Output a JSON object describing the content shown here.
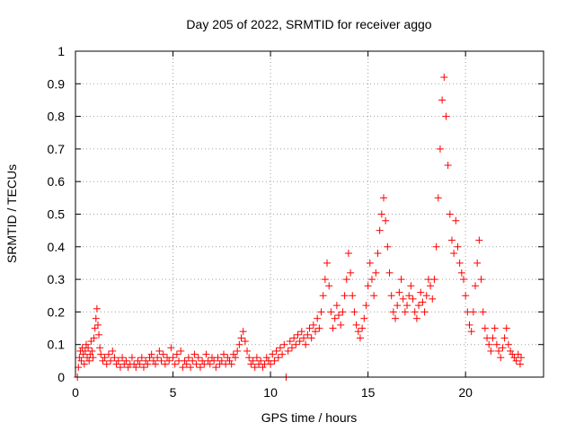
{
  "chart_data": {
    "type": "scatter",
    "title": "Day 205 of 2022, SRMTID for receiver aggo",
    "xlabel": "GPS time / hours",
    "ylabel": "SRMTID / TECUs",
    "xlim": [
      0,
      24
    ],
    "ylim": [
      0,
      1
    ],
    "x_ticks": [
      0,
      5,
      10,
      15,
      20
    ],
    "x_tick_labels": [
      "0",
      "5",
      "10",
      "15",
      "20"
    ],
    "y_ticks": [
      0,
      0.1,
      0.2,
      0.3,
      0.4,
      0.5,
      0.6,
      0.7,
      0.8,
      0.9,
      1
    ],
    "y_tick_labels": [
      "0",
      "0.1",
      "0.2",
      "0.3",
      "0.4",
      "0.5",
      "0.6",
      "0.7",
      "0.8",
      "0.9",
      "1"
    ],
    "grid": true,
    "marker": "+",
    "marker_color": "#ff0000",
    "series": [
      {
        "name": "SRMTID",
        "points": [
          [
            0.1,
            0.0
          ],
          [
            0.15,
            0.03
          ],
          [
            0.2,
            0.06
          ],
          [
            0.25,
            0.08
          ],
          [
            0.3,
            0.05
          ],
          [
            0.35,
            0.09
          ],
          [
            0.4,
            0.07
          ],
          [
            0.45,
            0.04
          ],
          [
            0.5,
            0.08
          ],
          [
            0.55,
            0.1
          ],
          [
            0.6,
            0.06
          ],
          [
            0.65,
            0.09
          ],
          [
            0.7,
            0.05
          ],
          [
            0.75,
            0.07
          ],
          [
            0.8,
            0.11
          ],
          [
            0.85,
            0.08
          ],
          [
            0.9,
            0.06
          ],
          [
            0.95,
            0.12
          ],
          [
            1.0,
            0.15
          ],
          [
            1.05,
            0.18
          ],
          [
            1.1,
            0.21
          ],
          [
            1.15,
            0.16
          ],
          [
            1.2,
            0.13
          ],
          [
            1.25,
            0.09
          ],
          [
            1.3,
            0.07
          ],
          [
            1.4,
            0.05
          ],
          [
            1.5,
            0.06
          ],
          [
            1.6,
            0.04
          ],
          [
            1.7,
            0.07
          ],
          [
            1.8,
            0.05
          ],
          [
            1.9,
            0.08
          ],
          [
            2.0,
            0.06
          ],
          [
            2.1,
            0.04
          ],
          [
            2.2,
            0.05
          ],
          [
            2.3,
            0.03
          ],
          [
            2.4,
            0.06
          ],
          [
            2.5,
            0.04
          ],
          [
            2.6,
            0.05
          ],
          [
            2.7,
            0.03
          ],
          [
            2.8,
            0.04
          ],
          [
            2.9,
            0.06
          ],
          [
            3.0,
            0.04
          ],
          [
            3.1,
            0.03
          ],
          [
            3.2,
            0.05
          ],
          [
            3.3,
            0.04
          ],
          [
            3.4,
            0.06
          ],
          [
            3.5,
            0.03
          ],
          [
            3.6,
            0.05
          ],
          [
            3.7,
            0.04
          ],
          [
            3.8,
            0.06
          ],
          [
            3.9,
            0.07
          ],
          [
            4.0,
            0.05
          ],
          [
            4.1,
            0.04
          ],
          [
            4.2,
            0.06
          ],
          [
            4.3,
            0.08
          ],
          [
            4.4,
            0.05
          ],
          [
            4.5,
            0.07
          ],
          [
            4.6,
            0.04
          ],
          [
            4.7,
            0.06
          ],
          [
            4.8,
            0.05
          ],
          [
            4.9,
            0.09
          ],
          [
            5.0,
            0.06
          ],
          [
            5.1,
            0.04
          ],
          [
            5.2,
            0.07
          ],
          [
            5.3,
            0.05
          ],
          [
            5.4,
            0.08
          ],
          [
            5.5,
            0.03
          ],
          [
            5.6,
            0.05
          ],
          [
            5.7,
            0.04
          ],
          [
            5.8,
            0.06
          ],
          [
            5.9,
            0.03
          ],
          [
            6.0,
            0.05
          ],
          [
            6.1,
            0.07
          ],
          [
            6.2,
            0.04
          ],
          [
            6.3,
            0.06
          ],
          [
            6.4,
            0.03
          ],
          [
            6.5,
            0.05
          ],
          [
            6.6,
            0.04
          ],
          [
            6.7,
            0.07
          ],
          [
            6.8,
            0.05
          ],
          [
            6.9,
            0.04
          ],
          [
            7.0,
            0.06
          ],
          [
            7.1,
            0.05
          ],
          [
            7.2,
            0.03
          ],
          [
            7.3,
            0.06
          ],
          [
            7.4,
            0.04
          ],
          [
            7.5,
            0.05
          ],
          [
            7.6,
            0.07
          ],
          [
            7.7,
            0.04
          ],
          [
            7.8,
            0.06
          ],
          [
            7.9,
            0.05
          ],
          [
            8.0,
            0.04
          ],
          [
            8.1,
            0.07
          ],
          [
            8.2,
            0.06
          ],
          [
            8.3,
            0.08
          ],
          [
            8.4,
            0.1
          ],
          [
            8.5,
            0.12
          ],
          [
            8.6,
            0.14
          ],
          [
            8.7,
            0.11
          ],
          [
            8.8,
            0.08
          ],
          [
            8.9,
            0.06
          ],
          [
            9.0,
            0.04
          ],
          [
            9.1,
            0.05
          ],
          [
            9.2,
            0.03
          ],
          [
            9.3,
            0.06
          ],
          [
            9.4,
            0.04
          ],
          [
            9.5,
            0.05
          ],
          [
            9.6,
            0.03
          ],
          [
            9.7,
            0.04
          ],
          [
            9.8,
            0.06
          ],
          [
            9.9,
            0.05
          ],
          [
            10.0,
            0.04
          ],
          [
            10.1,
            0.07
          ],
          [
            10.2,
            0.05
          ],
          [
            10.3,
            0.08
          ],
          [
            10.4,
            0.06
          ],
          [
            10.5,
            0.09
          ],
          [
            10.6,
            0.07
          ],
          [
            10.7,
            0.1
          ],
          [
            10.8,
            0.0
          ],
          [
            10.9,
            0.08
          ],
          [
            11.0,
            0.11
          ],
          [
            11.1,
            0.09
          ],
          [
            11.2,
            0.12
          ],
          [
            11.3,
            0.1
          ],
          [
            11.4,
            0.13
          ],
          [
            11.5,
            0.11
          ],
          [
            11.6,
            0.14
          ],
          [
            11.7,
            0.12
          ],
          [
            11.8,
            0.1
          ],
          [
            11.9,
            0.13
          ],
          [
            12.0,
            0.15
          ],
          [
            12.1,
            0.12
          ],
          [
            12.2,
            0.16
          ],
          [
            12.3,
            0.14
          ],
          [
            12.4,
            0.18
          ],
          [
            12.5,
            0.15
          ],
          [
            12.6,
            0.2
          ],
          [
            12.7,
            0.25
          ],
          [
            12.8,
            0.3
          ],
          [
            12.9,
            0.35
          ],
          [
            13.0,
            0.28
          ],
          [
            13.1,
            0.2
          ],
          [
            13.2,
            0.15
          ],
          [
            13.3,
            0.18
          ],
          [
            13.4,
            0.22
          ],
          [
            13.5,
            0.19
          ],
          [
            13.6,
            0.16
          ],
          [
            13.7,
            0.2
          ],
          [
            13.8,
            0.25
          ],
          [
            13.9,
            0.3
          ],
          [
            14.0,
            0.38
          ],
          [
            14.1,
            0.32
          ],
          [
            14.2,
            0.25
          ],
          [
            14.3,
            0.2
          ],
          [
            14.4,
            0.16
          ],
          [
            14.5,
            0.14
          ],
          [
            14.6,
            0.12
          ],
          [
            14.7,
            0.15
          ],
          [
            14.8,
            0.18
          ],
          [
            14.9,
            0.22
          ],
          [
            15.0,
            0.28
          ],
          [
            15.1,
            0.35
          ],
          [
            15.2,
            0.3
          ],
          [
            15.3,
            0.25
          ],
          [
            15.4,
            0.32
          ],
          [
            15.5,
            0.38
          ],
          [
            15.6,
            0.45
          ],
          [
            15.7,
            0.5
          ],
          [
            15.8,
            0.55
          ],
          [
            15.9,
            0.48
          ],
          [
            16.0,
            0.4
          ],
          [
            16.1,
            0.32
          ],
          [
            16.2,
            0.25
          ],
          [
            16.3,
            0.2
          ],
          [
            16.4,
            0.18
          ],
          [
            16.5,
            0.22
          ],
          [
            16.6,
            0.26
          ],
          [
            16.7,
            0.3
          ],
          [
            16.8,
            0.24
          ],
          [
            16.9,
            0.2
          ],
          [
            17.0,
            0.22
          ],
          [
            17.1,
            0.25
          ],
          [
            17.2,
            0.28
          ],
          [
            17.3,
            0.24
          ],
          [
            17.4,
            0.2
          ],
          [
            17.5,
            0.18
          ],
          [
            17.6,
            0.22
          ],
          [
            17.7,
            0.26
          ],
          [
            17.8,
            0.23
          ],
          [
            17.9,
            0.2
          ],
          [
            18.0,
            0.25
          ],
          [
            18.1,
            0.3
          ],
          [
            18.2,
            0.28
          ],
          [
            18.3,
            0.24
          ],
          [
            18.4,
            0.3
          ],
          [
            18.5,
            0.4
          ],
          [
            18.6,
            0.55
          ],
          [
            18.7,
            0.7
          ],
          [
            18.8,
            0.85
          ],
          [
            18.9,
            0.92
          ],
          [
            19.0,
            0.8
          ],
          [
            19.1,
            0.65
          ],
          [
            19.2,
            0.5
          ],
          [
            19.3,
            0.42
          ],
          [
            19.4,
            0.38
          ],
          [
            19.5,
            0.48
          ],
          [
            19.6,
            0.4
          ],
          [
            19.7,
            0.35
          ],
          [
            19.8,
            0.32
          ],
          [
            19.9,
            0.3
          ],
          [
            20.0,
            0.25
          ],
          [
            20.1,
            0.2
          ],
          [
            20.2,
            0.16
          ],
          [
            20.3,
            0.14
          ],
          [
            20.4,
            0.2
          ],
          [
            20.5,
            0.28
          ],
          [
            20.6,
            0.35
          ],
          [
            20.7,
            0.42
          ],
          [
            20.8,
            0.3
          ],
          [
            20.9,
            0.2
          ],
          [
            21.0,
            0.15
          ],
          [
            21.1,
            0.12
          ],
          [
            21.2,
            0.1
          ],
          [
            21.3,
            0.08
          ],
          [
            21.4,
            0.12
          ],
          [
            21.5,
            0.15
          ],
          [
            21.6,
            0.1
          ],
          [
            21.7,
            0.08
          ],
          [
            21.8,
            0.06
          ],
          [
            21.9,
            0.09
          ],
          [
            22.0,
            0.12
          ],
          [
            22.1,
            0.15
          ],
          [
            22.2,
            0.1
          ],
          [
            22.3,
            0.08
          ],
          [
            22.4,
            0.07
          ],
          [
            22.5,
            0.06
          ],
          [
            22.6,
            0.05
          ],
          [
            22.7,
            0.07
          ],
          [
            22.8,
            0.04
          ],
          [
            22.85,
            0.06
          ]
        ]
      }
    ]
  }
}
